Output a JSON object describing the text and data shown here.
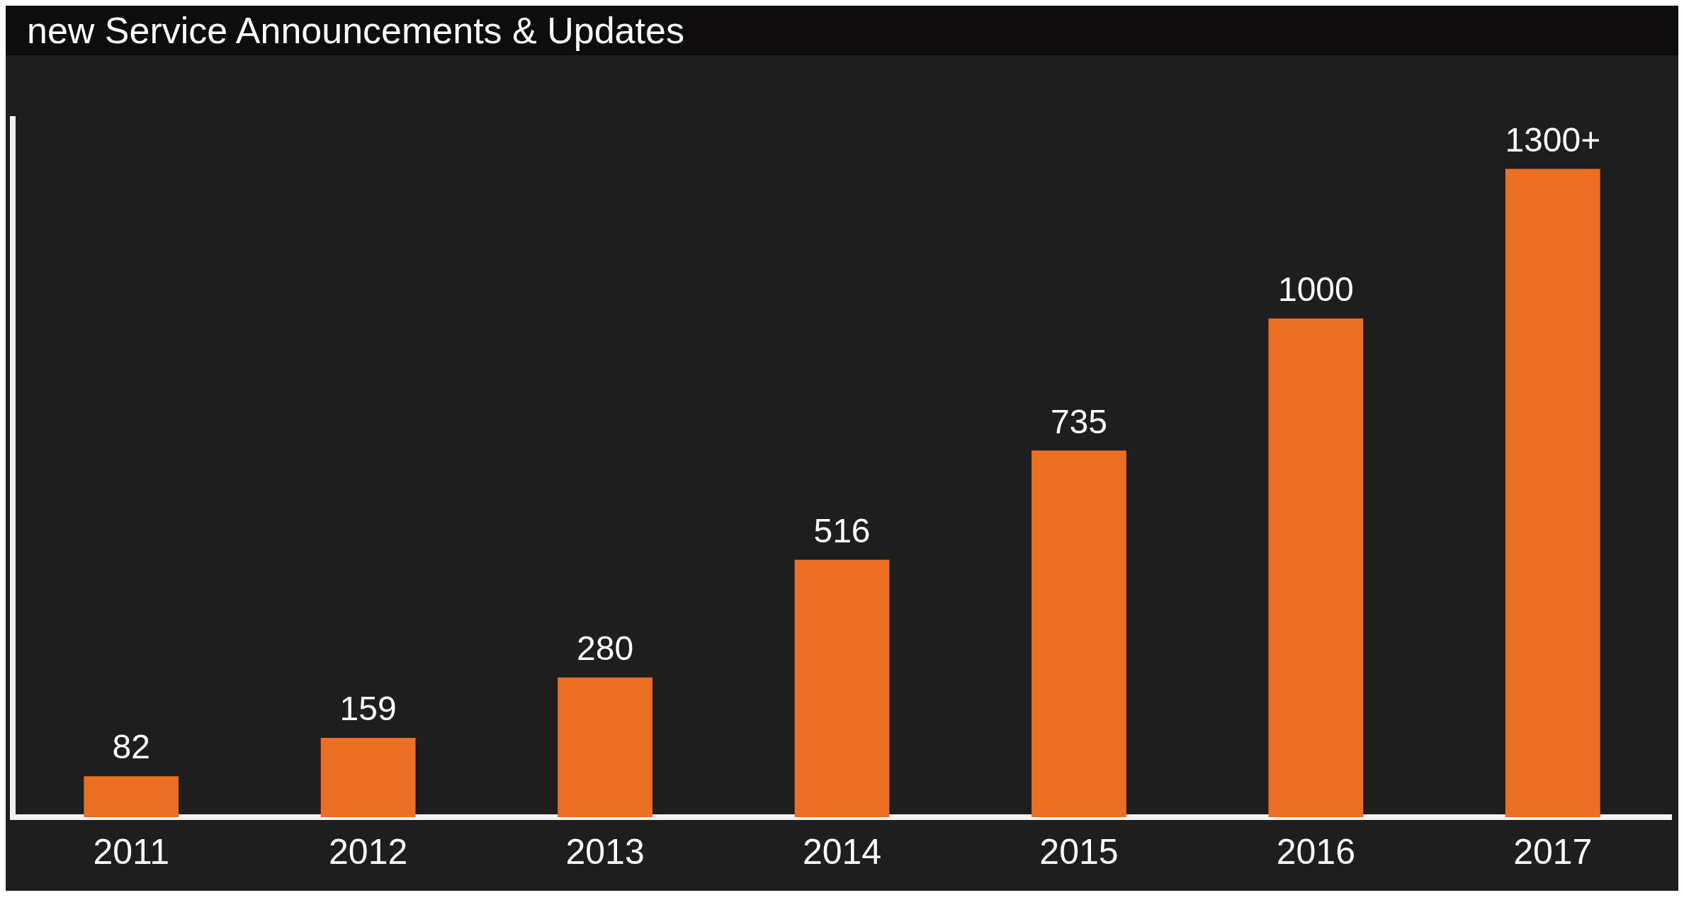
{
  "chart_data": {
    "type": "bar",
    "title": "new Service Announcements & Updates",
    "categories": [
      "2011",
      "2012",
      "2013",
      "2014",
      "2015",
      "2016",
      "2017"
    ],
    "values": [
      82,
      159,
      280,
      516,
      735,
      1000,
      1300
    ],
    "value_labels": [
      "82",
      "159",
      "280",
      "516",
      "735",
      "1000",
      "1300+"
    ],
    "color": "#ec6e23",
    "grid": false,
    "legend": false,
    "tick_labels": "x"
  }
}
